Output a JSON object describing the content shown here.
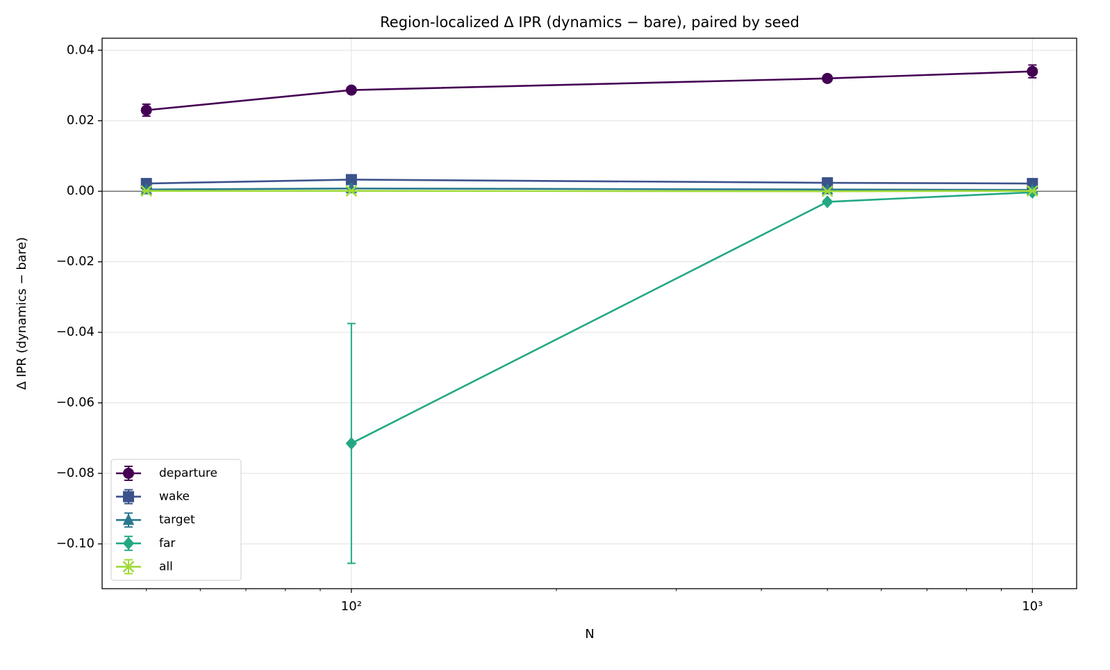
{
  "chart_data": {
    "type": "errorbar-line",
    "title": "Region-localized Δ IPR (dynamics − bare), paired by seed",
    "xlabel": "N",
    "ylabel": "Δ IPR (dynamics − bare)",
    "x": [
      50,
      100,
      500,
      1000
    ],
    "xscale": "log",
    "xlim": [
      43.05,
      1161.4
    ],
    "xticks": [
      {
        "value": 100,
        "label": "10²"
      },
      {
        "value": 1000,
        "label": "10³"
      }
    ],
    "xminorticks": [
      50,
      60,
      70,
      80,
      90,
      200,
      300,
      400,
      500,
      600,
      700,
      800,
      900
    ],
    "ylim": [
      -0.1127,
      0.0434
    ],
    "yticks": [
      {
        "value": -0.1,
        "label": "−0.10"
      },
      {
        "value": -0.08,
        "label": "−0.08"
      },
      {
        "value": -0.06,
        "label": "−0.06"
      },
      {
        "value": -0.04,
        "label": "−0.04"
      },
      {
        "value": -0.02,
        "label": "−0.02"
      },
      {
        "value": 0,
        "label": "0.00"
      },
      0.02,
      0.04
    ],
    "grid": true,
    "hline": 0,
    "legend": "lower left",
    "series": [
      {
        "name": "departure",
        "color": "#440154",
        "marker": "circle",
        "values": [
          0.023,
          0.0287,
          0.032,
          0.034
        ],
        "errors": [
          0.0017,
          0.0007,
          0.0005,
          0.0018
        ]
      },
      {
        "name": "wake",
        "color": "#3b528b",
        "marker": "square",
        "values": [
          0.0022,
          0.0033,
          0.0024,
          0.0022
        ],
        "errors": [
          0.0005,
          0.0005,
          0.0004,
          0.0004
        ]
      },
      {
        "name": "target",
        "color": "#2a788e",
        "marker": "triangle",
        "values": [
          0.0005,
          0.0008,
          0.0005,
          0.0004
        ],
        "errors": [
          0.0002,
          0.0002,
          0.0002,
          0.0002
        ]
      },
      {
        "name": "far",
        "color": "#22a884",
        "marker": "diamond",
        "values": [
          null,
          -0.0715,
          -0.003,
          -0.0003
        ],
        "errors": [
          null,
          0.034,
          0.0005,
          0.0003
        ]
      },
      {
        "name": "all",
        "color": "#a0da39",
        "marker": "x",
        "values": [
          0.0001,
          0.0001,
          0.0,
          0.0001
        ],
        "errors": [
          0.0001,
          0.0001,
          0.0001,
          0.0001
        ]
      }
    ]
  }
}
